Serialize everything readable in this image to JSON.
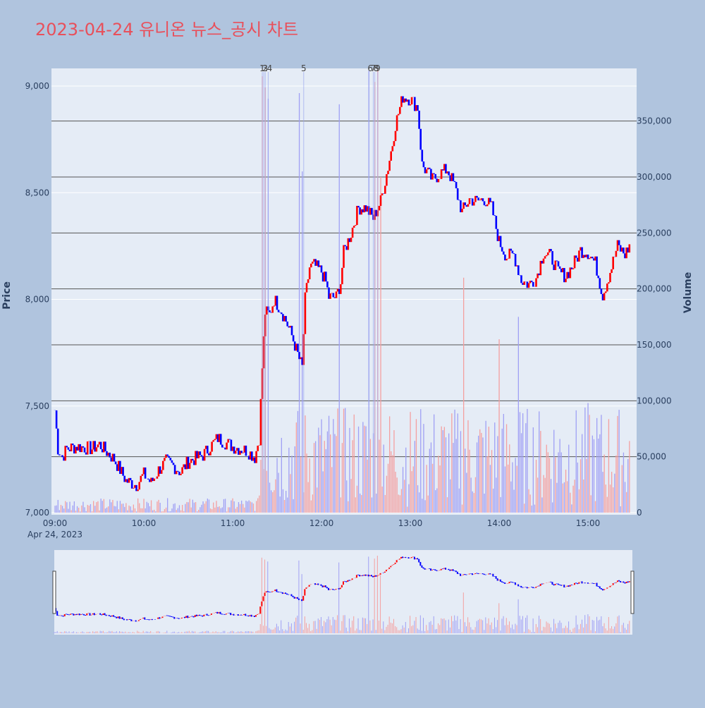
{
  "chart_data": {
    "type": "candlestick",
    "title": "2023-04-24 유니온 뉴스_공시 차트",
    "date_label": "Apr 24, 2023",
    "y_title": "Price",
    "y2_title": "Volume",
    "ylim": [
      7000,
      9050
    ],
    "y2lim": [
      0,
      390000
    ],
    "xlim": [
      "09:00",
      "15:30"
    ],
    "y_ticks": [
      7000,
      7500,
      8000,
      8500,
      9000
    ],
    "y_tick_labels": [
      "7,000",
      "7,500",
      "8,000",
      "8,500",
      "9,000"
    ],
    "y2_ticks": [
      0,
      50000,
      100000,
      150000,
      200000,
      250000,
      300000,
      350000
    ],
    "y2_tick_labels": [
      "0",
      "50,000",
      "100,000",
      "150,000",
      "200,000",
      "250,000",
      "300,000",
      "350,000"
    ],
    "x_ticks": [
      "09:00",
      "10:00",
      "11:00",
      "12:00",
      "13:00",
      "14:00",
      "15:00"
    ],
    "grid": true,
    "colors": {
      "up": "#ff0000",
      "down": "#0000ff",
      "volume_up": "#f4a0a0",
      "volume_down": "#a0a0f4",
      "title": "#e8505b",
      "plot_bg": "#e5ecf6",
      "page_bg": "#b0c4de",
      "hline": "#555555"
    },
    "price_path": [
      [
        "09:00",
        7480
      ],
      [
        "09:02",
        7300
      ],
      [
        "09:05",
        7260
      ],
      [
        "09:08",
        7300
      ],
      [
        "09:15",
        7310
      ],
      [
        "09:25",
        7300
      ],
      [
        "09:30",
        7320
      ],
      [
        "09:40",
        7250
      ],
      [
        "09:48",
        7150
      ],
      [
        "09:55",
        7130
      ],
      [
        "10:00",
        7180
      ],
      [
        "10:05",
        7140
      ],
      [
        "10:10",
        7200
      ],
      [
        "10:15",
        7240
      ],
      [
        "10:20",
        7220
      ],
      [
        "10:25",
        7190
      ],
      [
        "10:30",
        7240
      ],
      [
        "10:40",
        7270
      ],
      [
        "10:45",
        7310
      ],
      [
        "10:50",
        7350
      ],
      [
        "10:55",
        7330
      ],
      [
        "11:00",
        7310
      ],
      [
        "11:05",
        7300
      ],
      [
        "11:10",
        7290
      ],
      [
        "11:15",
        7260
      ],
      [
        "11:18",
        7350
      ],
      [
        "11:20",
        7680
      ],
      [
        "11:22",
        7940
      ],
      [
        "11:25",
        7930
      ],
      [
        "11:28",
        8000
      ],
      [
        "11:32",
        7960
      ],
      [
        "11:36",
        7900
      ],
      [
        "11:40",
        7830
      ],
      [
        "11:45",
        7720
      ],
      [
        "11:47",
        7680
      ],
      [
        "11:49",
        8000
      ],
      [
        "11:52",
        8150
      ],
      [
        "11:55",
        8160
      ],
      [
        "12:00",
        8130
      ],
      [
        "12:03",
        8080
      ],
      [
        "12:05",
        8010
      ],
      [
        "12:10",
        8010
      ],
      [
        "12:13",
        8080
      ],
      [
        "12:15",
        8220
      ],
      [
        "12:20",
        8310
      ],
      [
        "12:25",
        8430
      ],
      [
        "12:30",
        8430
      ],
      [
        "12:35",
        8380
      ],
      [
        "12:40",
        8460
      ],
      [
        "12:45",
        8620
      ],
      [
        "12:48",
        8730
      ],
      [
        "12:50",
        8820
      ],
      [
        "12:55",
        8950
      ],
      [
        "13:00",
        8940
      ],
      [
        "13:05",
        8900
      ],
      [
        "13:08",
        8630
      ],
      [
        "13:12",
        8590
      ],
      [
        "13:15",
        8560
      ],
      [
        "13:20",
        8590
      ],
      [
        "13:25",
        8610
      ],
      [
        "13:30",
        8530
      ],
      [
        "13:35",
        8410
      ],
      [
        "13:40",
        8470
      ],
      [
        "13:45",
        8460
      ],
      [
        "13:50",
        8470
      ],
      [
        "13:55",
        8430
      ],
      [
        "14:00",
        8270
      ],
      [
        "14:05",
        8200
      ],
      [
        "14:10",
        8210
      ],
      [
        "14:15",
        8090
      ],
      [
        "14:20",
        8070
      ],
      [
        "14:25",
        8100
      ],
      [
        "14:30",
        8220
      ],
      [
        "14:35",
        8200
      ],
      [
        "14:40",
        8130
      ],
      [
        "14:45",
        8110
      ],
      [
        "14:50",
        8160
      ],
      [
        "14:55",
        8230
      ],
      [
        "15:00",
        8220
      ],
      [
        "15:05",
        8170
      ],
      [
        "15:10",
        8020
      ],
      [
        "15:15",
        8130
      ],
      [
        "15:20",
        8250
      ],
      [
        "15:25",
        8210
      ],
      [
        "15:28",
        8250
      ]
    ],
    "volume_spikes": [
      [
        "11:20",
        390000
      ],
      [
        "11:22",
        380000
      ],
      [
        "11:24",
        370000
      ],
      [
        "11:45",
        375000
      ],
      [
        "11:47",
        305000
      ],
      [
        "12:12",
        365000
      ],
      [
        "12:32",
        395000
      ],
      [
        "12:36",
        385000
      ],
      [
        "12:38",
        400000
      ],
      [
        "12:40",
        300000
      ],
      [
        "13:36",
        210000
      ],
      [
        "14:00",
        155000
      ],
      [
        "14:13",
        175000
      ],
      [
        "15:00",
        98000
      ]
    ],
    "news_markers": [
      {
        "label": "1",
        "time": "11:20"
      },
      {
        "label": "2",
        "time": "11:21"
      },
      {
        "label": "3",
        "time": "11:22"
      },
      {
        "label": "4",
        "time": "11:24"
      },
      {
        "label": "5",
        "time": "11:48"
      },
      {
        "label": "6",
        "time": "12:32"
      },
      {
        "label": "7",
        "time": "12:35"
      },
      {
        "label": "8",
        "time": "12:36"
      },
      {
        "label": "9",
        "time": "12:38"
      }
    ]
  }
}
